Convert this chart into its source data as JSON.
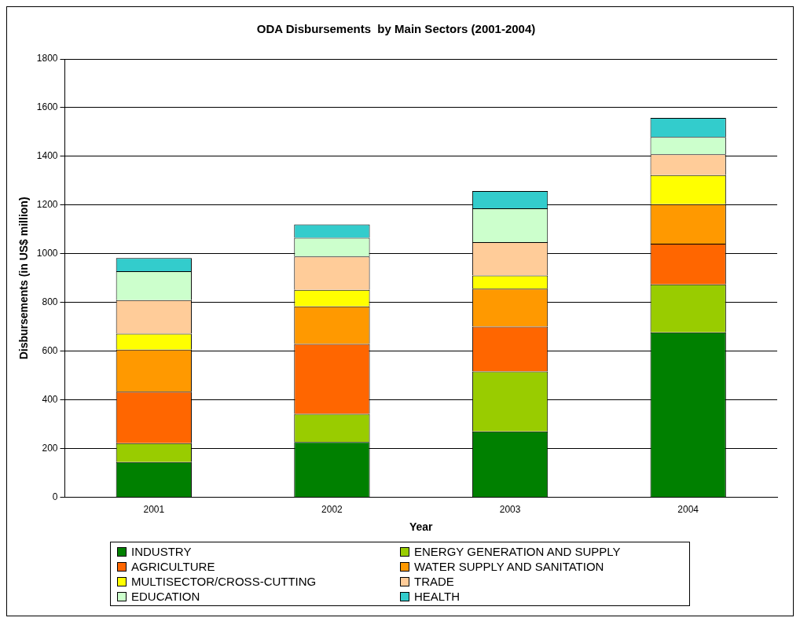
{
  "chart_data": {
    "type": "bar",
    "title": "ODA Disbursements  by Main Sectors (2001-2004)",
    "xlabel": "Year",
    "ylabel": "Disbursements (in US$ million)",
    "categories": [
      "2001",
      "2002",
      "2003",
      "2004"
    ],
    "stacked": true,
    "ylim": [
      0,
      1800
    ],
    "yticks": [
      0,
      200,
      400,
      600,
      800,
      1000,
      1200,
      1400,
      1600,
      1800
    ],
    "grid": "y",
    "legend": "bottom",
    "series": [
      {
        "name": "INDUSTRY",
        "color": "#008000",
        "values": [
          145,
          228,
          271,
          678
        ]
      },
      {
        "name": "ENERGY GENERATION AND SUPPLY",
        "color": "#99cc00",
        "values": [
          78,
          115,
          246,
          197
        ]
      },
      {
        "name": "AGRICULTURE",
        "color": "#ff6600",
        "values": [
          211,
          287,
          184,
          167
        ]
      },
      {
        "name": "WATER SUPPLY AND SANITATION",
        "color": "#ff9900",
        "values": [
          173,
          154,
          156,
          162
        ]
      },
      {
        "name": "MULTISECTOR/CROSS-CUTTING",
        "color": "#ffff00",
        "values": [
          65,
          68,
          54,
          119
        ]
      },
      {
        "name": "TRADE",
        "color": "#ffcc99",
        "values": [
          138,
          137,
          137,
          86
        ]
      },
      {
        "name": "EDUCATION",
        "color": "#ccffcc",
        "values": [
          119,
          77,
          139,
          71
        ]
      },
      {
        "name": "HEALTH",
        "color": "#33cccc",
        "values": [
          54,
          55,
          71,
          78
        ]
      }
    ]
  }
}
